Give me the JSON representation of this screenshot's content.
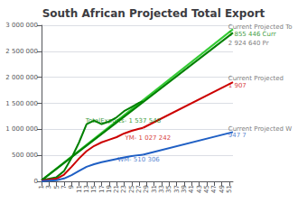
{
  "chart_data": {
    "type": "line",
    "title": "South African Projected Total Export",
    "xlim": [
      1,
      52
    ],
    "ylim": [
      0,
      3000000
    ],
    "xticks": [
      1,
      3,
      5,
      7,
      9,
      11,
      13,
      15,
      17,
      19,
      21,
      23,
      25,
      27,
      29,
      31,
      33,
      35,
      37,
      39,
      41,
      43,
      45,
      47,
      49,
      51
    ],
    "yticks": [
      0,
      {
        "value": 500000,
        "label": "500 000"
      },
      {
        "value": 1000000,
        "label": "1 000 000"
      },
      {
        "value": 1500000,
        "label": "1 500 000"
      },
      {
        "value": 2000000,
        "label": "2 000 000"
      },
      {
        "value": 2500000,
        "label": "2 500 000"
      },
      {
        "value": 3000000,
        "label": "3 000 000"
      }
    ],
    "grid": true,
    "series": [
      {
        "color": "#33cc33",
        "x": [
          1,
          52
        ],
        "values": [
          20000,
          2924640
        ]
      },
      {
        "color": "#008000",
        "x": [
          1,
          52
        ],
        "values": [
          20000,
          2855446
        ]
      },
      {
        "color": "#008000",
        "x": [
          1,
          5,
          7,
          9,
          11,
          13,
          15,
          17,
          19,
          21,
          23,
          25,
          27,
          28
        ],
        "values": [
          20000,
          80000,
          200000,
          450000,
          750000,
          1100000,
          1170000,
          1100000,
          1150000,
          1230000,
          1350000,
          1430000,
          1510000,
          1537548
        ]
      },
      {
        "color": "#cc0000",
        "x": [
          28,
          52
        ],
        "values": [
          1027242,
          1907000
        ]
      },
      {
        "color": "#cc0000",
        "x": [
          1,
          5,
          7,
          9,
          11,
          13,
          15,
          17,
          19,
          21,
          23,
          25,
          27,
          28
        ],
        "values": [
          15000,
          50000,
          130000,
          280000,
          440000,
          580000,
          680000,
          750000,
          800000,
          850000,
          920000,
          970000,
          1010000,
          1027242
        ]
      },
      {
        "color": "#1f5fc4",
        "x": [
          28,
          52
        ],
        "values": [
          510306,
          947700
        ]
      },
      {
        "color": "#1f5fc4",
        "x": [
          1,
          5,
          7,
          9,
          11,
          13,
          15,
          17,
          19,
          21,
          23,
          25,
          27,
          28
        ],
        "values": [
          5000,
          20000,
          55000,
          120000,
          200000,
          280000,
          330000,
          370000,
          400000,
          430000,
          460000,
          485000,
          505000,
          510306
        ]
      }
    ],
    "annotations": [
      {
        "text": "TotalExports- 1 537 548",
        "x": 12.5,
        "y": 1155000,
        "color": "#008000"
      },
      {
        "text": "YM- 1 027 242",
        "x": 23,
        "y": 830000,
        "color": "#cc0000"
      },
      {
        "text": "WM- 510 306",
        "x": 21,
        "y": 420000,
        "color": "#1f5fc4"
      },
      {
        "text": "Current Projected To",
        "x": 50.5,
        "y": 2960000,
        "color": "#555555"
      },
      {
        "text": "2 855 446 Curr",
        "x": 50.5,
        "y": 2820000,
        "color": "#008000"
      },
      {
        "text": "2 924 640 Pr",
        "x": 50.5,
        "y": 2660000,
        "color": "#555555"
      },
      {
        "text": "Current Projected",
        "x": 50.5,
        "y": 1980000,
        "color": "#555555"
      },
      {
        "text": "1 907",
        "x": 50.5,
        "y": 1840000,
        "color": "#cc0000"
      },
      {
        "text": "Current Projected W",
        "x": 50.5,
        "y": 1010000,
        "color": "#555555"
      },
      {
        "text": "947 7",
        "x": 50.5,
        "y": 880000,
        "color": "#1f5fc4"
      }
    ]
  }
}
